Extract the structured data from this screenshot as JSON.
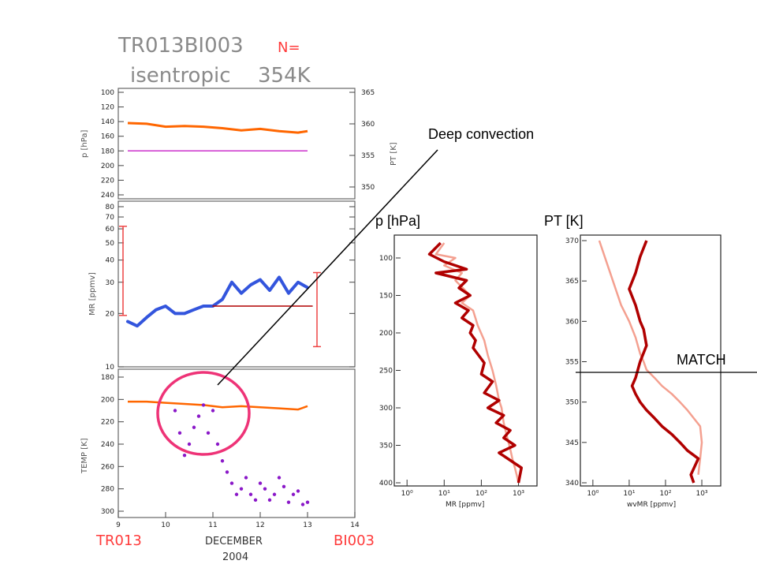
{
  "header": {
    "title_line1": "TR013BI003",
    "n_label": "N=",
    "title_line2": "isentropic",
    "title_value": "354K"
  },
  "annotations": {
    "deep_convection": "Deep convection",
    "p_hpa": "p [hPa]",
    "pt_k": "PT [K]",
    "match": "MATCH"
  },
  "footer": {
    "left_station": "TR013",
    "right_station": "BI003",
    "month": "DECEMBER",
    "year": "2004"
  },
  "colors": {
    "orange": "#ff6600",
    "magenta": "#cc33cc",
    "blue": "#3355dd",
    "darkred": "#b00000",
    "salmon": "#f4a090",
    "purple": "#8a18c8",
    "circle": "#ee3377",
    "errorbar": "#ee4444",
    "station": "#ff3b3b"
  },
  "chart_data": [
    {
      "type": "line",
      "id": "pressure_panel",
      "ylabel": "p [hPa]",
      "ylabel_right": "PT [K]",
      "ylim": [
        100,
        240
      ],
      "y_ticks": [
        "100",
        "120",
        "140",
        "160",
        "180",
        "200",
        "220",
        "240"
      ],
      "yr_ticks": [
        "365",
        "360",
        "355",
        "350"
      ],
      "xlim": [
        9,
        14
      ],
      "series": [
        {
          "color_key": "orange",
          "x": [
            9.2,
            9.6,
            10.0,
            10.4,
            10.8,
            11.2,
            11.6,
            12.0,
            12.4,
            12.8,
            13.0
          ],
          "values": [
            142,
            143,
            147,
            146,
            147,
            149,
            152,
            150,
            153,
            155,
            153
          ]
        },
        {
          "color_key": "magenta",
          "x": [
            9.2,
            13.0
          ],
          "values": [
            180,
            180
          ]
        }
      ]
    },
    {
      "type": "line",
      "id": "mr_panel",
      "ylabel": "MR [ppmv]",
      "scale": "log",
      "ylim": [
        10,
        80
      ],
      "y_ticks": [
        "10",
        "20",
        "30",
        "40",
        "50",
        "60",
        "70",
        "80"
      ],
      "xlim": [
        9,
        14
      ],
      "series": [
        {
          "color_key": "blue",
          "x": [
            9.2,
            9.4,
            9.6,
            9.8,
            10.0,
            10.2,
            10.4,
            10.6,
            10.8,
            11.0,
            11.2,
            11.4,
            11.6,
            11.8,
            12.0,
            12.2,
            12.4,
            12.6,
            12.8,
            13.0
          ],
          "values": [
            18,
            17,
            19,
            21,
            22,
            20,
            20,
            21,
            22,
            22,
            24,
            30,
            26,
            29,
            31,
            27,
            32,
            26,
            30,
            28
          ]
        },
        {
          "color_key": "darkred",
          "x": [
            11.0,
            13.1
          ],
          "values": [
            22,
            22
          ]
        }
      ],
      "error_bars": [
        {
          "x": 9.1,
          "low": 19.5,
          "high": 62
        },
        {
          "x": 13.2,
          "low": 13,
          "high": 34
        }
      ]
    },
    {
      "type": "scatter",
      "id": "temp_panel",
      "ylabel": "TEMP [K]",
      "ylim": [
        180,
        300
      ],
      "y_ticks": [
        "180",
        "200",
        "220",
        "240",
        "260",
        "280",
        "300"
      ],
      "x_ticks": [
        "9",
        "10",
        "11",
        "12",
        "13",
        "14"
      ],
      "xlim": [
        9,
        14
      ],
      "series": [
        {
          "color_key": "orange",
          "x": [
            9.2,
            9.6,
            10.0,
            10.4,
            10.8,
            11.2,
            11.6,
            12.0,
            12.4,
            12.8,
            13.0
          ],
          "values": [
            202,
            202,
            203,
            204,
            205,
            207,
            206,
            207,
            208,
            209,
            206
          ]
        },
        {
          "color_key": "purple",
          "x": [
            10.2,
            10.3,
            10.4,
            10.5,
            10.6,
            10.7,
            10.8,
            10.9,
            11.0,
            11.1,
            11.2,
            11.3,
            11.4,
            11.5,
            11.6,
            11.7,
            11.8,
            11.9,
            12.0,
            12.1,
            12.2,
            12.3,
            12.4,
            12.5,
            12.6,
            12.7,
            12.8,
            12.9,
            13.0
          ],
          "values": [
            210,
            230,
            250,
            240,
            225,
            215,
            205,
            230,
            210,
            240,
            255,
            265,
            275,
            285,
            280,
            270,
            285,
            290,
            275,
            280,
            290,
            285,
            270,
            278,
            292,
            285,
            282,
            294,
            292
          ]
        }
      ]
    },
    {
      "type": "line",
      "id": "mr_profile",
      "xlabel": "MR [ppmv]",
      "scale": "log-x",
      "xlim": [
        0.5,
        3000
      ],
      "ylim": [
        80,
        400
      ],
      "x_ticks": [
        "10⁰",
        "10¹",
        "10²",
        "10³"
      ],
      "y_ticks": [
        "100",
        "150",
        "200",
        "250",
        "300",
        "350",
        "400"
      ],
      "series": [
        {
          "color_key": "darkred",
          "x": [
            8,
            4,
            10,
            40,
            6,
            40,
            25,
            50,
            20,
            45,
            30,
            60,
            50,
            70,
            60,
            120,
            100,
            200,
            120,
            300,
            150,
            400,
            250,
            600,
            400,
            800,
            300,
            1200,
            1000
          ],
          "values": [
            80,
            95,
            105,
            115,
            120,
            130,
            140,
            150,
            160,
            170,
            180,
            190,
            200,
            210,
            220,
            240,
            255,
            265,
            280,
            290,
            300,
            310,
            320,
            330,
            340,
            350,
            360,
            380,
            400
          ]
        },
        {
          "color_key": "salmon",
          "x": [
            10,
            6,
            20,
            10,
            30,
            20,
            50,
            30,
            60,
            80,
            120,
            150,
            200,
            250,
            300,
            350,
            400,
            500,
            600,
            700,
            800,
            900,
            1000
          ],
          "values": [
            80,
            95,
            100,
            110,
            120,
            130,
            150,
            160,
            170,
            190,
            210,
            230,
            250,
            270,
            290,
            300,
            320,
            340,
            355,
            370,
            380,
            390,
            400
          ]
        }
      ]
    },
    {
      "type": "line",
      "id": "wvmr_profile",
      "xlabel": "wvMR [ppmv]",
      "scale": "log-x",
      "xlim": [
        0.5,
        3000
      ],
      "ylim": [
        340,
        370
      ],
      "x_ticks": [
        "10⁰",
        "10¹",
        "10²",
        "10³"
      ],
      "y_ticks": [
        "340",
        "345",
        "350",
        "355",
        "360",
        "365",
        "370"
      ],
      "match_level": 354,
      "series": [
        {
          "color_key": "darkred",
          "x": [
            30,
            20,
            15,
            10,
            15,
            20,
            25,
            30,
            20,
            15,
            12,
            15,
            20,
            30,
            50,
            80,
            150,
            250,
            400,
            800,
            500,
            600
          ],
          "values": [
            370,
            368,
            366,
            364,
            362,
            360,
            359,
            357,
            355,
            353,
            352,
            351,
            350,
            349,
            348,
            347,
            346,
            345,
            344,
            343,
            341,
            340
          ]
        },
        {
          "color_key": "salmon",
          "x": [
            1.5,
            3,
            6,
            10,
            15,
            20,
            25,
            30,
            50,
            80,
            150,
            250,
            400,
            600,
            900,
            1000,
            900,
            800
          ],
          "values": [
            370,
            366,
            362,
            360,
            358,
            356,
            355,
            354,
            353,
            352,
            351,
            350,
            349,
            348,
            347,
            345,
            343,
            341
          ]
        }
      ]
    }
  ]
}
